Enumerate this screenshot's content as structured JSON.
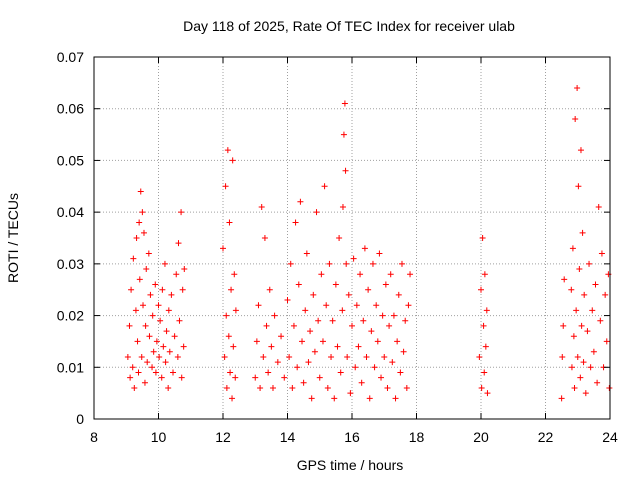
{
  "chart_data": {
    "type": "scatter",
    "title": "Day 118 of 2025, Rate Of TEC Index for receiver ulab",
    "xlabel": "GPS time / hours",
    "ylabel": "ROTI / TECUs",
    "xlim": [
      8,
      24
    ],
    "ylim": [
      0,
      0.07
    ],
    "x_ticks": [
      "8",
      "10",
      "12",
      "14",
      "16",
      "18",
      "20",
      "22",
      "24"
    ],
    "y_ticks": [
      "0",
      "0.01",
      "0.02",
      "0.03",
      "0.04",
      "0.05",
      "0.06",
      "0.07"
    ],
    "grid": true,
    "marker": "+",
    "color": "#ff0000",
    "series": [
      {
        "points": [
          [
            9.05,
            0.012
          ],
          [
            9.1,
            0.018
          ],
          [
            9.12,
            0.008
          ],
          [
            9.15,
            0.025
          ],
          [
            9.2,
            0.01
          ],
          [
            9.22,
            0.031
          ],
          [
            9.25,
            0.006
          ],
          [
            9.3,
            0.021
          ],
          [
            9.32,
            0.035
          ],
          [
            9.35,
            0.015
          ],
          [
            9.38,
            0.009
          ],
          [
            9.4,
            0.038
          ],
          [
            9.42,
            0.027
          ],
          [
            9.45,
            0.044
          ],
          [
            9.48,
            0.012
          ],
          [
            9.5,
            0.04
          ],
          [
            9.52,
            0.022
          ],
          [
            9.55,
            0.036
          ],
          [
            9.58,
            0.007
          ],
          [
            9.6,
            0.018
          ],
          [
            9.62,
            0.029
          ],
          [
            9.65,
            0.011
          ],
          [
            9.7,
            0.032
          ],
          [
            9.72,
            0.016
          ],
          [
            9.75,
            0.024
          ],
          [
            9.8,
            0.01
          ],
          [
            9.82,
            0.02
          ],
          [
            9.85,
            0.013
          ],
          [
            9.9,
            0.026
          ],
          [
            9.92,
            0.009
          ],
          [
            9.95,
            0.015
          ],
          [
            10.0,
            0.022
          ],
          [
            10.02,
            0.012
          ],
          [
            10.05,
            0.019
          ],
          [
            10.1,
            0.008
          ],
          [
            10.12,
            0.025
          ],
          [
            10.15,
            0.014
          ],
          [
            10.2,
            0.03
          ],
          [
            10.22,
            0.011
          ],
          [
            10.25,
            0.017
          ],
          [
            10.3,
            0.006
          ],
          [
            10.32,
            0.021
          ],
          [
            10.35,
            0.013
          ],
          [
            10.4,
            0.024
          ],
          [
            10.45,
            0.009
          ],
          [
            10.5,
            0.016
          ],
          [
            10.55,
            0.028
          ],
          [
            10.6,
            0.012
          ],
          [
            10.62,
            0.034
          ],
          [
            10.65,
            0.019
          ],
          [
            10.7,
            0.04
          ],
          [
            10.72,
            0.008
          ],
          [
            10.75,
            0.025
          ],
          [
            10.78,
            0.014
          ],
          [
            10.8,
            0.029
          ],
          [
            12.0,
            0.033
          ],
          [
            12.05,
            0.012
          ],
          [
            12.08,
            0.045
          ],
          [
            12.1,
            0.02
          ],
          [
            12.12,
            0.006
          ],
          [
            12.15,
            0.052
          ],
          [
            12.18,
            0.016
          ],
          [
            12.2,
            0.038
          ],
          [
            12.22,
            0.009
          ],
          [
            12.25,
            0.025
          ],
          [
            12.28,
            0.004
          ],
          [
            12.3,
            0.05
          ],
          [
            12.32,
            0.014
          ],
          [
            12.35,
            0.028
          ],
          [
            12.38,
            0.008
          ],
          [
            12.4,
            0.021
          ],
          [
            13.0,
            0.008
          ],
          [
            13.05,
            0.015
          ],
          [
            13.1,
            0.022
          ],
          [
            13.15,
            0.006
          ],
          [
            13.2,
            0.041
          ],
          [
            13.25,
            0.012
          ],
          [
            13.3,
            0.035
          ],
          [
            13.35,
            0.018
          ],
          [
            13.4,
            0.009
          ],
          [
            13.45,
            0.025
          ],
          [
            13.5,
            0.014
          ],
          [
            13.55,
            0.006
          ],
          [
            13.6,
            0.02
          ],
          [
            13.7,
            0.011
          ],
          [
            13.8,
            0.016
          ],
          [
            13.9,
            0.008
          ],
          [
            14.0,
            0.023
          ],
          [
            14.05,
            0.012
          ],
          [
            14.1,
            0.03
          ],
          [
            14.15,
            0.006
          ],
          [
            14.2,
            0.018
          ],
          [
            14.25,
            0.038
          ],
          [
            14.3,
            0.01
          ],
          [
            14.35,
            0.026
          ],
          [
            14.4,
            0.042
          ],
          [
            14.45,
            0.015
          ],
          [
            14.5,
            0.007
          ],
          [
            14.55,
            0.021
          ],
          [
            14.6,
            0.032
          ],
          [
            14.65,
            0.011
          ],
          [
            14.7,
            0.017
          ],
          [
            14.75,
            0.004
          ],
          [
            14.8,
            0.024
          ],
          [
            14.85,
            0.013
          ],
          [
            14.9,
            0.04
          ],
          [
            14.95,
            0.019
          ],
          [
            15.0,
            0.008
          ],
          [
            15.05,
            0.028
          ],
          [
            15.1,
            0.015
          ],
          [
            15.15,
            0.045
          ],
          [
            15.2,
            0.022
          ],
          [
            15.25,
            0.006
          ],
          [
            15.3,
            0.03
          ],
          [
            15.35,
            0.012
          ],
          [
            15.4,
            0.019
          ],
          [
            15.45,
            0.004
          ],
          [
            15.5,
            0.026
          ],
          [
            15.55,
            0.014
          ],
          [
            15.6,
            0.035
          ],
          [
            15.65,
            0.009
          ],
          [
            15.7,
            0.021
          ],
          [
            15.72,
            0.041
          ],
          [
            15.75,
            0.055
          ],
          [
            15.78,
            0.061
          ],
          [
            15.8,
            0.048
          ],
          [
            15.82,
            0.03
          ],
          [
            15.85,
            0.012
          ],
          [
            15.9,
            0.024
          ],
          [
            15.95,
            0.005
          ],
          [
            16.0,
            0.018
          ],
          [
            16.05,
            0.031
          ],
          [
            16.1,
            0.01
          ],
          [
            16.15,
            0.022
          ],
          [
            16.2,
            0.014
          ],
          [
            16.25,
            0.028
          ],
          [
            16.3,
            0.007
          ],
          [
            16.35,
            0.019
          ],
          [
            16.4,
            0.033
          ],
          [
            16.45,
            0.012
          ],
          [
            16.5,
            0.025
          ],
          [
            16.55,
            0.004
          ],
          [
            16.6,
            0.017
          ],
          [
            16.65,
            0.03
          ],
          [
            16.7,
            0.01
          ],
          [
            16.75,
            0.022
          ],
          [
            16.8,
            0.015
          ],
          [
            16.85,
            0.032
          ],
          [
            16.9,
            0.008
          ],
          [
            16.95,
            0.02
          ],
          [
            17.0,
            0.012
          ],
          [
            17.05,
            0.026
          ],
          [
            17.1,
            0.006
          ],
          [
            17.15,
            0.018
          ],
          [
            17.2,
            0.028
          ],
          [
            17.25,
            0.011
          ],
          [
            17.3,
            0.02
          ],
          [
            17.35,
            0.004
          ],
          [
            17.4,
            0.015
          ],
          [
            17.45,
            0.024
          ],
          [
            17.5,
            0.009
          ],
          [
            17.55,
            0.03
          ],
          [
            17.6,
            0.013
          ],
          [
            17.65,
            0.019
          ],
          [
            17.7,
            0.006
          ],
          [
            17.75,
            0.022
          ],
          [
            17.8,
            0.028
          ],
          [
            19.95,
            0.012
          ],
          [
            20.0,
            0.025
          ],
          [
            20.02,
            0.006
          ],
          [
            20.05,
            0.035
          ],
          [
            20.08,
            0.018
          ],
          [
            20.1,
            0.009
          ],
          [
            20.12,
            0.028
          ],
          [
            20.15,
            0.014
          ],
          [
            20.18,
            0.021
          ],
          [
            20.2,
            0.005
          ],
          [
            22.5,
            0.004
          ],
          [
            22.52,
            0.012
          ],
          [
            22.55,
            0.018
          ],
          [
            22.58,
            0.027
          ],
          [
            22.8,
            0.025
          ],
          [
            22.82,
            0.01
          ],
          [
            22.85,
            0.033
          ],
          [
            22.88,
            0.016
          ],
          [
            22.9,
            0.006
          ],
          [
            22.92,
            0.058
          ],
          [
            22.95,
            0.021
          ],
          [
            22.98,
            0.064
          ],
          [
            23.0,
            0.012
          ],
          [
            23.02,
            0.045
          ],
          [
            23.05,
            0.029
          ],
          [
            23.08,
            0.008
          ],
          [
            23.1,
            0.052
          ],
          [
            23.12,
            0.018
          ],
          [
            23.15,
            0.036
          ],
          [
            23.18,
            0.011
          ],
          [
            23.2,
            0.024
          ],
          [
            23.25,
            0.005
          ],
          [
            23.3,
            0.017
          ],
          [
            23.35,
            0.03
          ],
          [
            23.4,
            0.01
          ],
          [
            23.45,
            0.021
          ],
          [
            23.5,
            0.013
          ],
          [
            23.55,
            0.026
          ],
          [
            23.6,
            0.007
          ],
          [
            23.65,
            0.041
          ],
          [
            23.7,
            0.019
          ],
          [
            23.75,
            0.032
          ],
          [
            23.8,
            0.01
          ],
          [
            23.85,
            0.024
          ],
          [
            23.9,
            0.015
          ],
          [
            23.95,
            0.028
          ],
          [
            23.98,
            0.006
          ]
        ]
      }
    ]
  }
}
